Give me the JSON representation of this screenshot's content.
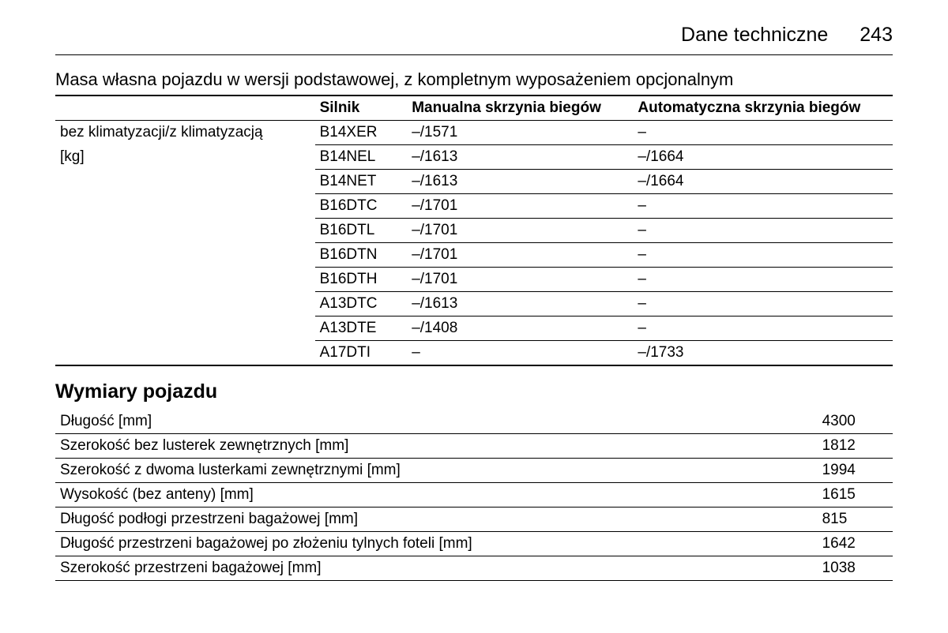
{
  "header": {
    "title": "Dane techniczne",
    "page_number": "243"
  },
  "mass_section": {
    "title": "Masa własna pojazdu w wersji podstawowej, z kompletnym wyposażeniem opcjonalnym",
    "columns": {
      "row_label_1": "bez klimatyzacji/z klimatyzacją",
      "row_label_2": "[kg]",
      "engine": "Silnik",
      "manual": "Manualna skrzynia biegów",
      "automatic": "Automatyczna skrzynia biegów"
    },
    "rows": [
      {
        "engine": "B14XER",
        "manual": "–/1571",
        "automatic": "–"
      },
      {
        "engine": "B14NEL",
        "manual": "–/1613",
        "automatic": "–/1664"
      },
      {
        "engine": "B14NET",
        "manual": "–/1613",
        "automatic": "–/1664"
      },
      {
        "engine": "B16DTC",
        "manual": "–/1701",
        "automatic": "–"
      },
      {
        "engine": "B16DTL",
        "manual": "–/1701",
        "automatic": "–"
      },
      {
        "engine": "B16DTN",
        "manual": "–/1701",
        "automatic": "–"
      },
      {
        "engine": "B16DTH",
        "manual": "–/1701",
        "automatic": "–"
      },
      {
        "engine": "A13DTC",
        "manual": "–/1613",
        "automatic": "–"
      },
      {
        "engine": "A13DTE",
        "manual": "–/1408",
        "automatic": "–"
      },
      {
        "engine": "A17DTI",
        "manual": "–",
        "automatic": "–/1733"
      }
    ]
  },
  "dimensions_section": {
    "heading": "Wymiary pojazdu",
    "rows": [
      {
        "label": "Długość [mm]",
        "value": "4300"
      },
      {
        "label": "Szerokość bez lusterek zewnętrznych [mm]",
        "value": "1812"
      },
      {
        "label": "Szerokość z dwoma lusterkami zewnętrznymi [mm]",
        "value": "1994"
      },
      {
        "label": "Wysokość (bez anteny) [mm]",
        "value": "1615"
      },
      {
        "label": "Długość podłogi przestrzeni bagażowej [mm]",
        "value": "815"
      },
      {
        "label": "Długość przestrzeni bagażowej po złożeniu tylnych foteli [mm]",
        "value": "1642"
      },
      {
        "label": "Szerokość przestrzeni bagażowej [mm]",
        "value": "1038"
      }
    ]
  },
  "style": {
    "font_family": "Arial, Helvetica, sans-serif",
    "text_color": "#000000",
    "background_color": "#ffffff",
    "rule_color": "#000000",
    "header_fontsize": 25,
    "section_title_fontsize": 22,
    "section_heading_fontsize": 25,
    "table_fontsize": 19
  }
}
